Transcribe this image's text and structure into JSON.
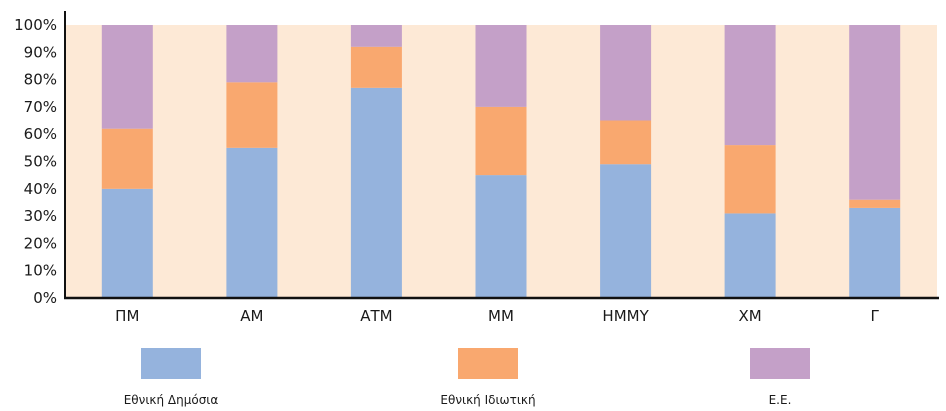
{
  "chart_data": {
    "type": "bar",
    "stacked": true,
    "normalized": true,
    "categories": [
      "ΠΜ",
      "ΑΜ",
      "ΑΤΜ",
      "ΜΜ",
      "ΗΜΜΥ",
      "ΧΜ",
      "Γ"
    ],
    "series": [
      {
        "name": "Εθνική Δημόσια",
        "color": "#95b3dd",
        "values": [
          40,
          55,
          77,
          45,
          49,
          31,
          33
        ]
      },
      {
        "name": "Εθνική Ιδιωτική",
        "color": "#f9a86f",
        "values": [
          22,
          24,
          15,
          25,
          16,
          25,
          3
        ]
      },
      {
        "name": "Ε.Ε.",
        "color": "#c4a0c8",
        "values": [
          38,
          21,
          8,
          30,
          35,
          44,
          64
        ]
      }
    ],
    "ylim": [
      0,
      100
    ],
    "yticks": [
      "0%",
      "10%",
      "20%",
      "30%",
      "40%",
      "50%",
      "60%",
      "70%",
      "80%",
      "90%",
      "100%"
    ],
    "plot_background": "#fde9d6",
    "legend_position": "bottom",
    "grid": false
  }
}
